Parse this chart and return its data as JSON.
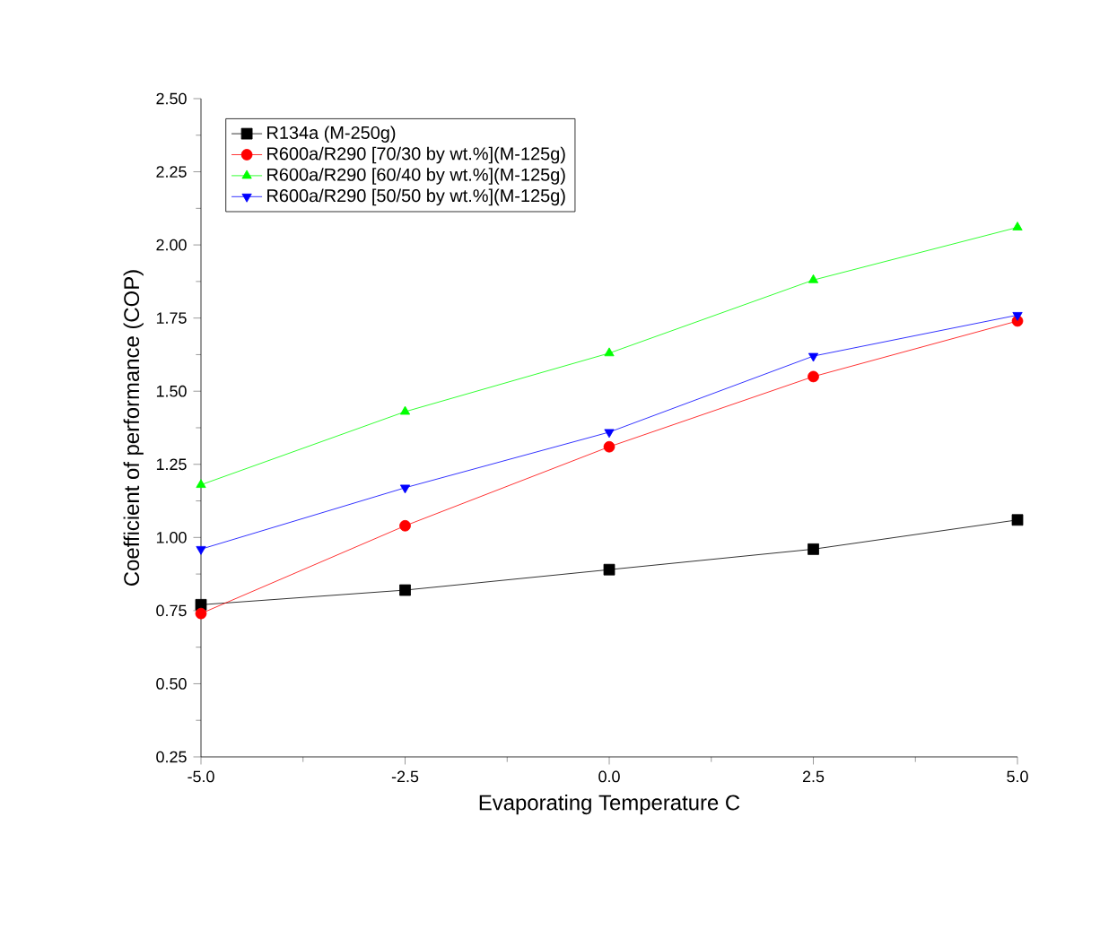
{
  "chart_data": {
    "type": "line",
    "xlabel": "Evaporating Temperature C",
    "ylabel": "Coefficient of performance (COP)",
    "x": [
      -5.0,
      -2.5,
      0.0,
      2.5,
      5.0
    ],
    "series": [
      {
        "name": "R134a (M-250g)",
        "color": "#000000",
        "marker": "square",
        "values": [
          0.77,
          0.82,
          0.89,
          0.96,
          1.06
        ]
      },
      {
        "name": "R600a/R290 [70/30 by wt.%](M-125g)",
        "color": "#ff0000",
        "marker": "circle",
        "values": [
          0.74,
          1.04,
          1.31,
          1.55,
          1.74
        ]
      },
      {
        "name": "R600a/R290 [60/40 by wt.%](M-125g)",
        "color": "#00ff00",
        "marker": "triangle",
        "values": [
          1.18,
          1.43,
          1.63,
          1.88,
          2.06
        ]
      },
      {
        "name": "R600a/R290 [50/50 by wt.%](M-125g)",
        "color": "#0000ff",
        "marker": "triangle-down",
        "values": [
          0.96,
          1.17,
          1.36,
          1.62,
          1.76
        ]
      }
    ],
    "xlim": [
      -5.0,
      5.0
    ],
    "ylim": [
      0.25,
      2.5
    ],
    "xticks": [
      {
        "value": -5,
        "label": "-5.0"
      },
      {
        "value": -2.5,
        "label": "-2.5"
      },
      {
        "value": 0,
        "label": "0.0"
      },
      {
        "value": 2.5,
        "label": "2.5"
      },
      {
        "value": 5,
        "label": "5.0"
      }
    ],
    "yticks": [
      {
        "value": 0.25,
        "label": "0.25"
      },
      {
        "value": 0.5,
        "label": "0.50"
      },
      {
        "value": 0.75,
        "label": "0.75"
      },
      {
        "value": 1.0,
        "label": "1.00"
      },
      {
        "value": 1.25,
        "label": "1.25"
      },
      {
        "value": 1.5,
        "label": "1.50"
      },
      {
        "value": 1.75,
        "label": "1.75"
      },
      {
        "value": 2.0,
        "label": "2.00"
      },
      {
        "value": 2.25,
        "label": "2.25"
      },
      {
        "value": 2.5,
        "label": "2.50"
      }
    ],
    "grid": false,
    "legend": "top left",
    "line_style": "solid"
  }
}
